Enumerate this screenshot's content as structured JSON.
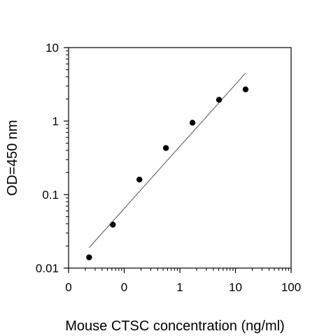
{
  "chart_data": {
    "type": "scatter",
    "title": "",
    "xlabel": "Mouse CTSC concentration (ng/ml)",
    "ylabel": "OD=450 nm",
    "x_scale": "log",
    "y_scale": "log",
    "xlim": [
      0.01,
      100
    ],
    "ylim": [
      0.01,
      10
    ],
    "x_tick_values": [
      0.01,
      0.1,
      1,
      10,
      100
    ],
    "x_tick_labels": [
      "0",
      "0",
      "1",
      "10",
      "100"
    ],
    "y_tick_values": [
      0.01,
      0.1,
      1,
      10
    ],
    "y_tick_labels": [
      "0.01",
      "0.1",
      "1",
      "10"
    ],
    "grid": false,
    "legend": "none",
    "colors": {
      "points": "#000000",
      "axes": "#000000",
      "fit_line": "#555555"
    },
    "series": [
      {
        "x": [
          0.0234,
          0.0625,
          0.1875,
          0.5625,
          1.6875,
          5.0625,
          15.1875
        ],
        "y": [
          0.014,
          0.039,
          0.16,
          0.43,
          0.95,
          1.95,
          2.7
        ]
      }
    ],
    "fit_line": {
      "x": [
        0.0234,
        15.1875
      ],
      "y": [
        0.019,
        4.5
      ]
    }
  }
}
